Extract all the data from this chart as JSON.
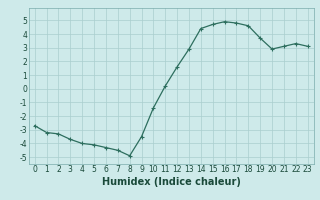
{
  "x": [
    0,
    1,
    2,
    3,
    4,
    5,
    6,
    7,
    8,
    9,
    10,
    11,
    12,
    13,
    14,
    15,
    16,
    17,
    18,
    19,
    20,
    21,
    22,
    23
  ],
  "y": [
    -2.7,
    -3.2,
    -3.3,
    -3.7,
    -4.0,
    -4.1,
    -4.3,
    -4.5,
    -4.9,
    -3.5,
    -1.4,
    0.2,
    1.6,
    2.9,
    4.4,
    4.7,
    4.9,
    4.8,
    4.6,
    3.7,
    2.9,
    3.1,
    3.3,
    3.1
  ],
  "line_color": "#2d6e5e",
  "marker": "+",
  "marker_size": 3,
  "linewidth": 0.9,
  "xlabel": "Humidex (Indice chaleur)",
  "xlim": [
    -0.5,
    23.5
  ],
  "ylim": [
    -5.5,
    5.9
  ],
  "yticks": [
    -5,
    -4,
    -3,
    -2,
    -1,
    0,
    1,
    2,
    3,
    4,
    5
  ],
  "xticks": [
    0,
    1,
    2,
    3,
    4,
    5,
    6,
    7,
    8,
    9,
    10,
    11,
    12,
    13,
    14,
    15,
    16,
    17,
    18,
    19,
    20,
    21,
    22,
    23
  ],
  "bg_color": "#ceeaea",
  "grid_color": "#aacece",
  "tick_fontsize": 5.5,
  "xlabel_fontsize": 7
}
